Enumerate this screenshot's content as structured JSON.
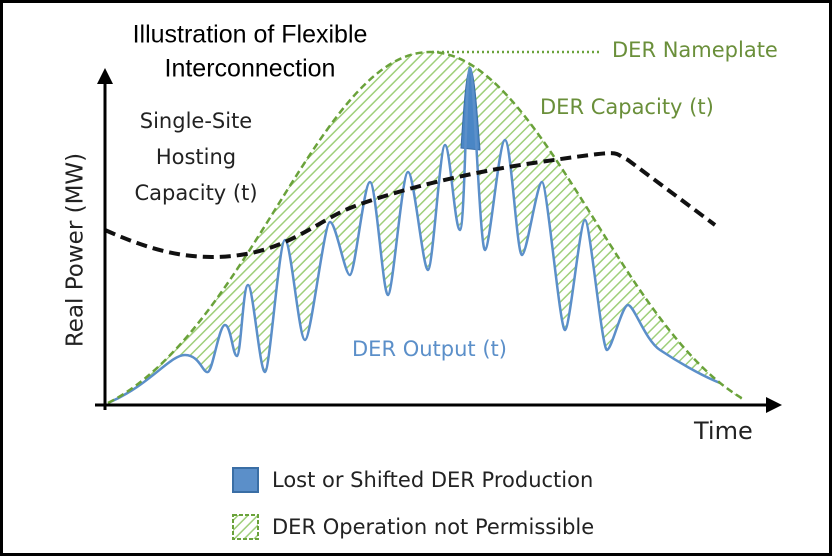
{
  "title": [
    "Illustration of Flexible",
    "Interconnection"
  ],
  "labels": {
    "nameplate": "DER  Nameplate",
    "capacity": "DER Capacity (t)",
    "hosting": [
      "Single-Site",
      "Hosting",
      "Capacity (t)"
    ],
    "output": "DER Output (t)",
    "y_axis": "Real Power (MW)",
    "x_axis": "Time"
  },
  "legend": [
    "Lost or Shifted DER Production",
    "DER Operation not Permissible"
  ]
}
